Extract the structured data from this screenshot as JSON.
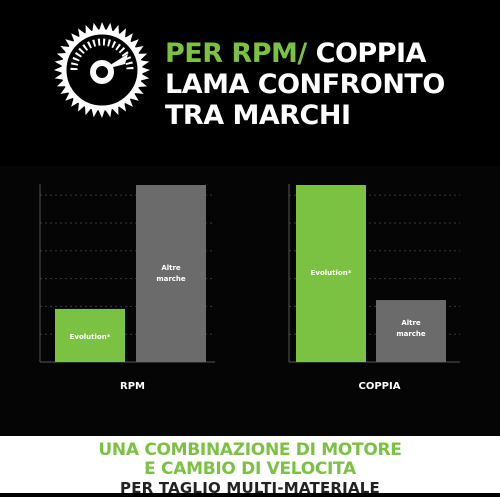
{
  "headline": {
    "line1_highlight": "PER RPM/",
    "line1_rest": " COPPIA",
    "line2": "LAMA CONFRONTO",
    "line3": "TRA MARCHI"
  },
  "badge": {
    "icon": "saw-blade-gauge-icon"
  },
  "colors": {
    "accent": "#7cc242",
    "gray": "#6b6b6b",
    "background": "#000000"
  },
  "chart_data": [
    {
      "type": "bar",
      "categories": [
        "Evolution*",
        "Altre marche"
      ],
      "values": [
        30,
        100
      ],
      "xlabel": "RPM",
      "ylim": [
        0,
        100
      ],
      "colors": [
        "#7cc242",
        "#6b6b6b"
      ],
      "grid": true
    },
    {
      "type": "bar",
      "categories": [
        "Evolution*",
        "Altre marche"
      ],
      "values": [
        100,
        35
      ],
      "xlabel": "COPPIA",
      "ylim": [
        0,
        100
      ],
      "colors": [
        "#7cc242",
        "#6b6b6b"
      ],
      "grid": true
    }
  ],
  "footer": {
    "line1": "UNA COMBINAZIONE DI MOTORE",
    "line2": "E CAMBIO DI VELOCITA",
    "line3": "PER TAGLIO MULTI-MATERIALE"
  }
}
